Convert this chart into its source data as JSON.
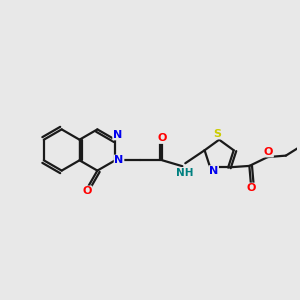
{
  "background_color": "#e8e8e8",
  "bond_color": "#1a1a1a",
  "bond_width": 1.6,
  "atom_colors": {
    "N": "#0000ee",
    "O": "#ff0000",
    "S": "#cccc00",
    "NH_color": "#008080"
  },
  "figsize": [
    3.0,
    3.0
  ],
  "dpi": 100
}
